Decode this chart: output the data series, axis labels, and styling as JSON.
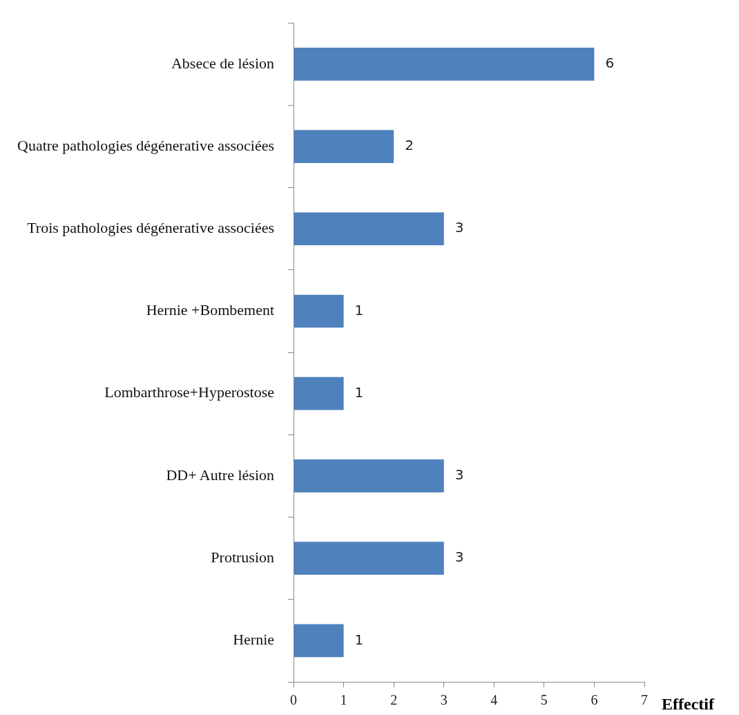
{
  "chart_data": {
    "type": "bar",
    "orientation": "horizontal",
    "xlabel": "Effectif",
    "categories": [
      "Absece de lésion",
      "Quatre pathologies dégénerative associées",
      "Trois pathologies dégénerative associées",
      "Hernie +Bombement",
      "Lombarthrose+Hyperostose",
      "DD+ Autre lésion",
      "Protrusion",
      "Hernie"
    ],
    "values": [
      6,
      2,
      3,
      1,
      1,
      3,
      3,
      1
    ],
    "color": "#4f81bd",
    "xlim": [
      0,
      7
    ],
    "xticks": [
      0,
      1,
      2,
      3,
      4,
      5,
      6,
      7
    ],
    "grid": false,
    "legend": false,
    "data_labels": true
  }
}
